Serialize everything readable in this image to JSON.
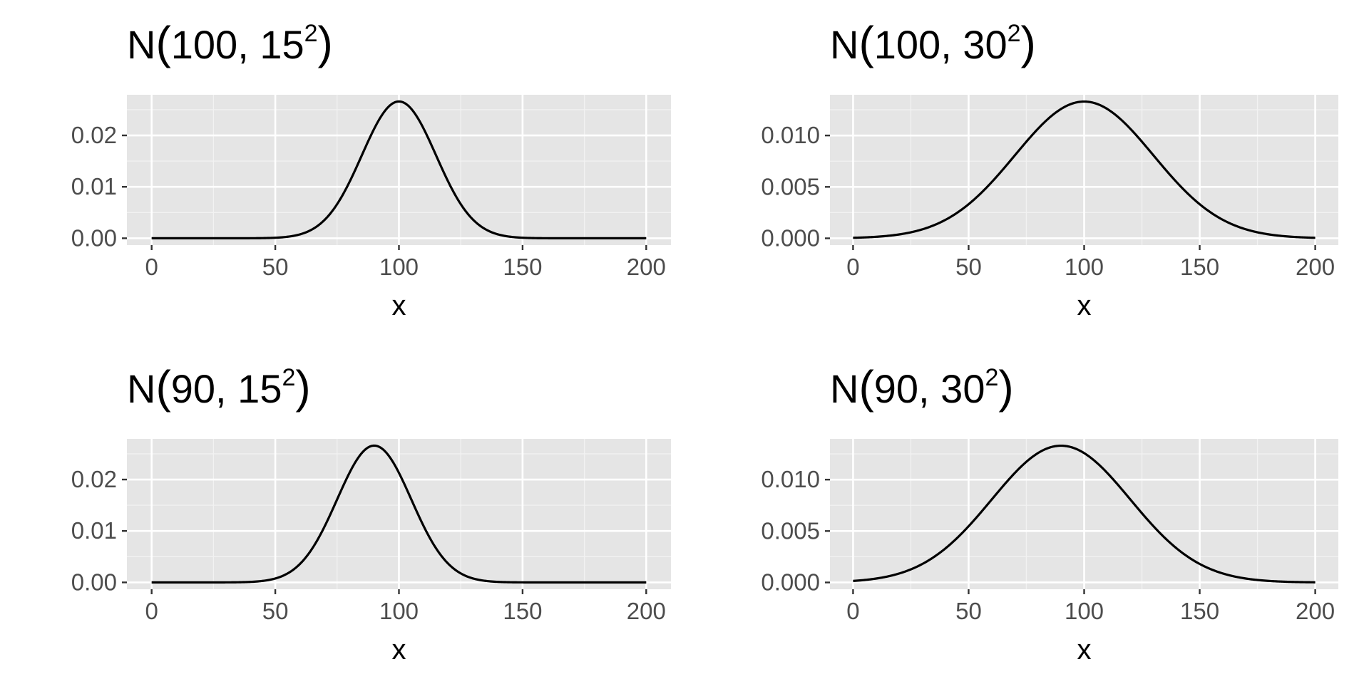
{
  "colors": {
    "panel_background": "#e5e5e5",
    "grid_major": "#ffffff",
    "grid_minor": "#f2f2f2",
    "line": "#000000",
    "tick_label": "#4d4d4d",
    "text": "#000000"
  },
  "chart_data": [
    {
      "type": "line",
      "title": {
        "prefix": "N",
        "args": "100, 15",
        "exponent": "2"
      },
      "xlabel": "x",
      "ylabel": "",
      "xlim": [
        -10,
        210
      ],
      "ylim": [
        -0.00133,
        0.0279
      ],
      "xticks": [
        0,
        50,
        100,
        150,
        200
      ],
      "yticks": [
        0.0,
        0.01,
        0.02
      ],
      "ytick_labels": [
        "0.00",
        "0.01",
        "0.02"
      ],
      "xtick_labels": [
        "0",
        "50",
        "100",
        "150",
        "200"
      ],
      "grid": true,
      "distribution": {
        "mean": 100,
        "sd": 15
      },
      "series": [
        {
          "x_range": [
            0,
            200
          ],
          "points": [
            [
              0,
              0.0
            ],
            [
              25,
              0.0
            ],
            [
              50,
              0.0001
            ],
            [
              60,
              0.0008
            ],
            [
              70,
              0.0036
            ],
            [
              80,
              0.0109
            ],
            [
              90,
              0.0213
            ],
            [
              100,
              0.0266
            ],
            [
              110,
              0.0213
            ],
            [
              120,
              0.0109
            ],
            [
              130,
              0.0036
            ],
            [
              140,
              0.0008
            ],
            [
              150,
              0.0001
            ],
            [
              175,
              0.0
            ],
            [
              200,
              0.0
            ]
          ]
        }
      ]
    },
    {
      "type": "line",
      "title": {
        "prefix": "N",
        "args": "100, 30",
        "exponent": "2"
      },
      "xlabel": "x",
      "ylabel": "",
      "xlim": [
        -10,
        210
      ],
      "ylim": [
        -0.00066,
        0.01396
      ],
      "xticks": [
        0,
        50,
        100,
        150,
        200
      ],
      "yticks": [
        0.0,
        0.005,
        0.01
      ],
      "ytick_labels": [
        "0.000",
        "0.005",
        "0.010"
      ],
      "xtick_labels": [
        "0",
        "50",
        "100",
        "150",
        "200"
      ],
      "grid": true,
      "distribution": {
        "mean": 100,
        "sd": 30
      },
      "series": [
        {
          "x_range": [
            0,
            200
          ],
          "points": [
            [
              0,
              0.0001
            ],
            [
              25,
              0.0006
            ],
            [
              50,
              0.0033
            ],
            [
              75,
              0.0094
            ],
            [
              100,
              0.0133
            ],
            [
              125,
              0.0094
            ],
            [
              150,
              0.0033
            ],
            [
              175,
              0.0006
            ],
            [
              200,
              0.0001
            ]
          ]
        }
      ]
    },
    {
      "type": "line",
      "title": {
        "prefix": "N",
        "args": "90, 15",
        "exponent": "2"
      },
      "xlabel": "x",
      "ylabel": "",
      "xlim": [
        -10,
        210
      ],
      "ylim": [
        -0.00133,
        0.0279
      ],
      "xticks": [
        0,
        50,
        100,
        150,
        200
      ],
      "yticks": [
        0.0,
        0.01,
        0.02
      ],
      "ytick_labels": [
        "0.00",
        "0.01",
        "0.02"
      ],
      "xtick_labels": [
        "0",
        "50",
        "100",
        "150",
        "200"
      ],
      "grid": true,
      "distribution": {
        "mean": 90,
        "sd": 15
      },
      "series": [
        {
          "x_range": [
            0,
            200
          ],
          "points": [
            [
              0,
              0.0
            ],
            [
              40,
              0.0001
            ],
            [
              50,
              0.0008
            ],
            [
              60,
              0.0036
            ],
            [
              70,
              0.0109
            ],
            [
              80,
              0.0213
            ],
            [
              90,
              0.0266
            ],
            [
              100,
              0.0213
            ],
            [
              110,
              0.0109
            ],
            [
              120,
              0.0036
            ],
            [
              130,
              0.0008
            ],
            [
              140,
              0.0001
            ],
            [
              200,
              0.0
            ]
          ]
        }
      ]
    },
    {
      "type": "line",
      "title": {
        "prefix": "N",
        "args": "90, 30",
        "exponent": "2"
      },
      "xlabel": "x",
      "ylabel": "",
      "xlim": [
        -10,
        210
      ],
      "ylim": [
        -0.00066,
        0.01396
      ],
      "xticks": [
        0,
        50,
        100,
        150,
        200
      ],
      "yticks": [
        0.0,
        0.005,
        0.01
      ],
      "ytick_labels": [
        "0.000",
        "0.005",
        "0.010"
      ],
      "xtick_labels": [
        "0",
        "50",
        "100",
        "150",
        "200"
      ],
      "grid": true,
      "distribution": {
        "mean": 90,
        "sd": 30
      },
      "series": [
        {
          "x_range": [
            0,
            200
          ],
          "points": [
            [
              0,
              0.0002
            ],
            [
              25,
              0.0013
            ],
            [
              50,
              0.0055
            ],
            [
              75,
              0.0117
            ],
            [
              90,
              0.0133
            ],
            [
              115,
              0.0094
            ],
            [
              140,
              0.0033
            ],
            [
              165,
              0.0006
            ],
            [
              200,
              0.0
            ]
          ]
        }
      ]
    }
  ]
}
